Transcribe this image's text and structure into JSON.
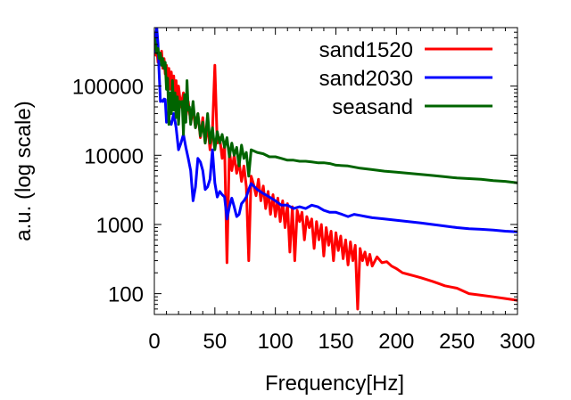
{
  "chart_data": {
    "type": "line",
    "title": "",
    "xlabel": "Frequency[Hz]",
    "ylabel": "a.u. (log scale)",
    "xlim": [
      0,
      300
    ],
    "ylim": [
      50,
      700000
    ],
    "yscale": "log",
    "grid": false,
    "legend_position": "top-right",
    "x_ticks": [
      {
        "value": 0,
        "label": "0"
      },
      {
        "value": 50,
        "label": "50"
      },
      {
        "value": 100,
        "label": "100"
      },
      {
        "value": 150,
        "label": "150"
      },
      {
        "value": 200,
        "label": "200"
      },
      {
        "value": 250,
        "label": "250"
      },
      {
        "value": 300,
        "label": "300"
      }
    ],
    "y_ticks": [
      {
        "value": 100,
        "label": "100"
      },
      {
        "value": 1000,
        "label": "1000"
      },
      {
        "value": 10000,
        "label": "10000"
      },
      {
        "value": 100000,
        "label": "100000"
      }
    ],
    "series": [
      {
        "name": "sand1520",
        "color": "#ff0000",
        "x": [
          0,
          1,
          2,
          3,
          4,
          5,
          6,
          7,
          8,
          9,
          10,
          11,
          12,
          13,
          14,
          15,
          16,
          17,
          18,
          19,
          20,
          22,
          24,
          26,
          28,
          30,
          32,
          34,
          36,
          38,
          40,
          42,
          44,
          46,
          48,
          50,
          52,
          54,
          56,
          58,
          60,
          62,
          64,
          66,
          68,
          70,
          72,
          74,
          76,
          78,
          80,
          82,
          84,
          86,
          88,
          90,
          92,
          94,
          96,
          98,
          100,
          102,
          104,
          106,
          108,
          110,
          112,
          114,
          116,
          118,
          120,
          122,
          124,
          126,
          128,
          130,
          132,
          134,
          136,
          138,
          140,
          142,
          144,
          146,
          148,
          150,
          152,
          154,
          156,
          158,
          160,
          162,
          164,
          166,
          168,
          170,
          172,
          174,
          176,
          178,
          180,
          184,
          188,
          192,
          196,
          200,
          205,
          210,
          215,
          220,
          225,
          230,
          235,
          240,
          250,
          260,
          270,
          280,
          290,
          300
        ],
        "y": [
          400000,
          280000,
          350000,
          220000,
          300000,
          240000,
          320000,
          180000,
          250000,
          150000,
          200000,
          120000,
          180000,
          90000,
          160000,
          100000,
          140000,
          70000,
          120000,
          60000,
          100000,
          50000,
          80000,
          35000,
          60000,
          30000,
          45000,
          25000,
          40000,
          18000,
          35000,
          15000,
          28000,
          12000,
          22000,
          200000,
          15000,
          18000,
          9000,
          14000,
          280,
          12000,
          6000,
          10000,
          5500,
          8000,
          4200,
          7000,
          3500,
          300,
          5000,
          3800,
          2600,
          4500,
          2200,
          3600,
          1700,
          3000,
          1400,
          2700,
          1300,
          2400,
          1100,
          2200,
          900,
          2000,
          400,
          1800,
          300,
          1600,
          1100,
          1500,
          600,
          1300,
          900,
          1200,
          450,
          1100,
          600,
          1000,
          350,
          900,
          500,
          800,
          300,
          760,
          420,
          680,
          320,
          600,
          260,
          560,
          300,
          500,
          60,
          450,
          300,
          400,
          260,
          370,
          250,
          340,
          280,
          290,
          250,
          230,
          200,
          190,
          180,
          170,
          160,
          150,
          140,
          130,
          120,
          100,
          95,
          90,
          85,
          80
        ]
      },
      {
        "name": "sand2030",
        "color": "#0000ff",
        "x": [
          0,
          1,
          2,
          3,
          4,
          5,
          6,
          7,
          8,
          9,
          10,
          12,
          14,
          16,
          18,
          20,
          22,
          24,
          26,
          28,
          30,
          32,
          34,
          36,
          38,
          40,
          42,
          44,
          46,
          48,
          50,
          52,
          54,
          56,
          58,
          60,
          62,
          64,
          66,
          68,
          70,
          72,
          74,
          76,
          78,
          80,
          85,
          90,
          95,
          100,
          105,
          110,
          115,
          120,
          125,
          130,
          135,
          140,
          145,
          150,
          155,
          160,
          165,
          170,
          175,
          180,
          190,
          200,
          210,
          220,
          230,
          240,
          250,
          260,
          270,
          280,
          290,
          300
        ],
        "y": [
          300000,
          500000,
          700000,
          400000,
          150000,
          60000,
          62000,
          60000,
          65000,
          64000,
          30000,
          32000,
          28000,
          40000,
          25000,
          12000,
          15000,
          20000,
          13000,
          9000,
          6000,
          2200,
          3500,
          9000,
          8000,
          6000,
          3200,
          3500,
          4500,
          12000,
          4000,
          2500,
          3000,
          2700,
          2500,
          1200,
          1800,
          2400,
          1800,
          1300,
          1400,
          2000,
          2200,
          2500,
          3200,
          3900,
          3200,
          2800,
          2500,
          2200,
          1900,
          1900,
          1700,
          1800,
          1700,
          1900,
          1800,
          1600,
          1500,
          1500,
          1400,
          1300,
          1400,
          1350,
          1300,
          1250,
          1200,
          1150,
          1100,
          1050,
          1000,
          950,
          900,
          870,
          850,
          830,
          800,
          780
        ]
      },
      {
        "name": "seasand",
        "color": "#006400",
        "x": [
          0,
          1,
          2,
          3,
          4,
          5,
          6,
          7,
          8,
          9,
          10,
          11,
          12,
          13,
          14,
          15,
          16,
          17,
          18,
          19,
          20,
          21,
          22,
          23,
          24,
          25,
          26,
          27,
          28,
          29,
          30,
          32,
          34,
          36,
          38,
          40,
          42,
          44,
          46,
          48,
          50,
          52,
          54,
          56,
          58,
          60,
          62,
          64,
          66,
          68,
          70,
          72,
          74,
          76,
          78,
          80,
          85,
          90,
          95,
          100,
          105,
          110,
          115,
          120,
          125,
          130,
          135,
          140,
          145,
          150,
          160,
          170,
          180,
          190,
          200,
          210,
          220,
          230,
          240,
          250,
          260,
          270,
          280,
          290,
          300
        ],
        "y": [
          500000,
          400000,
          300000,
          350000,
          250000,
          300000,
          200000,
          250000,
          180000,
          220000,
          90000,
          130000,
          28000,
          80000,
          40000,
          120000,
          45000,
          80000,
          35000,
          70000,
          28000,
          60000,
          55000,
          60000,
          20000,
          75000,
          30000,
          120000,
          45000,
          50000,
          28000,
          60000,
          25000,
          40000,
          19000,
          30000,
          15000,
          40000,
          15000,
          25000,
          12000,
          22000,
          15000,
          20000,
          13000,
          18000,
          9500,
          15000,
          10000,
          13000,
          7000,
          14000,
          9000,
          11000,
          5000,
          12000,
          11000,
          10500,
          9500,
          9500,
          9000,
          8500,
          8500,
          8200,
          8200,
          8000,
          7800,
          7800,
          7600,
          7200,
          7000,
          6500,
          6200,
          5900,
          5700,
          5500,
          5300,
          5100,
          4900,
          4700,
          4600,
          4500,
          4300,
          4200,
          4000
        ]
      }
    ]
  }
}
